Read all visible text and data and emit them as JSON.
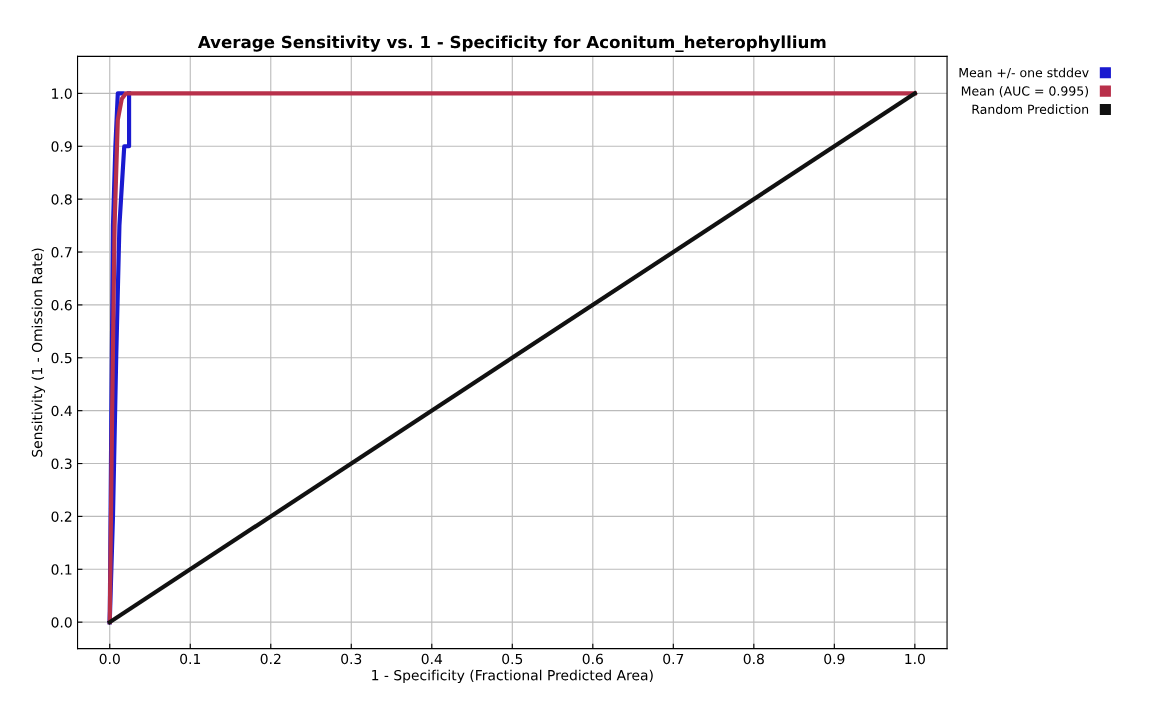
{
  "chart_data": {
    "type": "line",
    "title": "Average Sensitivity vs. 1 - Specificity for Aconitum_heterophyllium",
    "xlabel": "1 - Specificity (Fractional Predicted Area)",
    "ylabel": "Sensitivity (1 - Omission Rate)",
    "xlim": [
      -0.04,
      1.04
    ],
    "ylim": [
      -0.05,
      1.07
    ],
    "xticks": [
      {
        "value": 0,
        "label": "0.0"
      },
      0.1,
      0.2,
      0.3,
      0.4,
      0.5,
      0.6,
      0.7,
      0.8,
      0.9,
      {
        "value": 1,
        "label": "1.0"
      }
    ],
    "yticks": [
      {
        "value": 0,
        "label": "0.0"
      },
      0.1,
      0.2,
      0.3,
      0.4,
      0.5,
      0.6,
      0.7,
      0.8,
      0.9,
      {
        "value": 1,
        "label": "1.0"
      }
    ],
    "grid": true,
    "legend": "top right",
    "line_style": "solid",
    "marker": "none",
    "series": [
      {
        "name": "Mean +/- one stddev",
        "color": "#1a1ad0",
        "x": [
          0,
          0.002,
          0.004,
          0.007,
          0.01,
          0.016
        ],
        "values": [
          0,
          0.4,
          0.75,
          0.9,
          1,
          1
        ]
      },
      {
        "color": "#1a1ad0",
        "x": [
          0,
          0.004,
          0.008,
          0.012,
          0.018,
          0.024,
          0.024
        ],
        "values": [
          0,
          0.2,
          0.5,
          0.75,
          0.9,
          0.9,
          1
        ]
      },
      {
        "name": "Mean (AUC = 0.995)",
        "color": "#b8304a",
        "x": [
          0,
          0.003,
          0.006,
          0.01,
          0.015,
          0.02,
          1
        ],
        "values": [
          0,
          0.4,
          0.75,
          0.95,
          0.99,
          1,
          1
        ]
      },
      {
        "name": "Random Prediction",
        "color": "#111111",
        "x": [
          0,
          1
        ],
        "values": [
          0,
          1
        ]
      }
    ]
  }
}
